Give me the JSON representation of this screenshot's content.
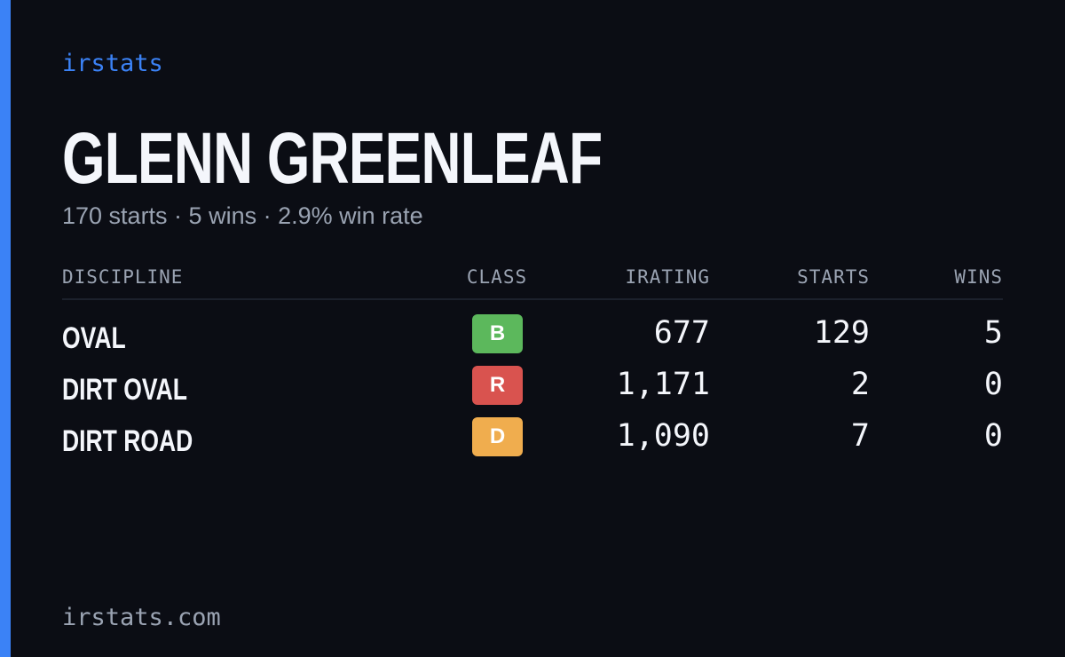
{
  "header": {
    "brand": "irstats"
  },
  "player": {
    "name": "GLENN GREENLEAF",
    "summary": "170 starts · 5 wins · 2.9% win rate"
  },
  "table": {
    "columns": [
      "DISCIPLINE",
      "CLASS",
      "IRATING",
      "STARTS",
      "WINS"
    ],
    "rows": [
      {
        "discipline": "OVAL",
        "class": "B",
        "class_color": "#5cb85c",
        "irating": "677",
        "starts": "129",
        "wins": "5"
      },
      {
        "discipline": "DIRT OVAL",
        "class": "R",
        "class_color": "#d9534f",
        "irating": "1,171",
        "starts": "2",
        "wins": "0"
      },
      {
        "discipline": "DIRT ROAD",
        "class": "D",
        "class_color": "#f0ad4e",
        "irating": "1,090",
        "starts": "7",
        "wins": "0"
      }
    ]
  },
  "footer": {
    "site": "irstats.com"
  }
}
